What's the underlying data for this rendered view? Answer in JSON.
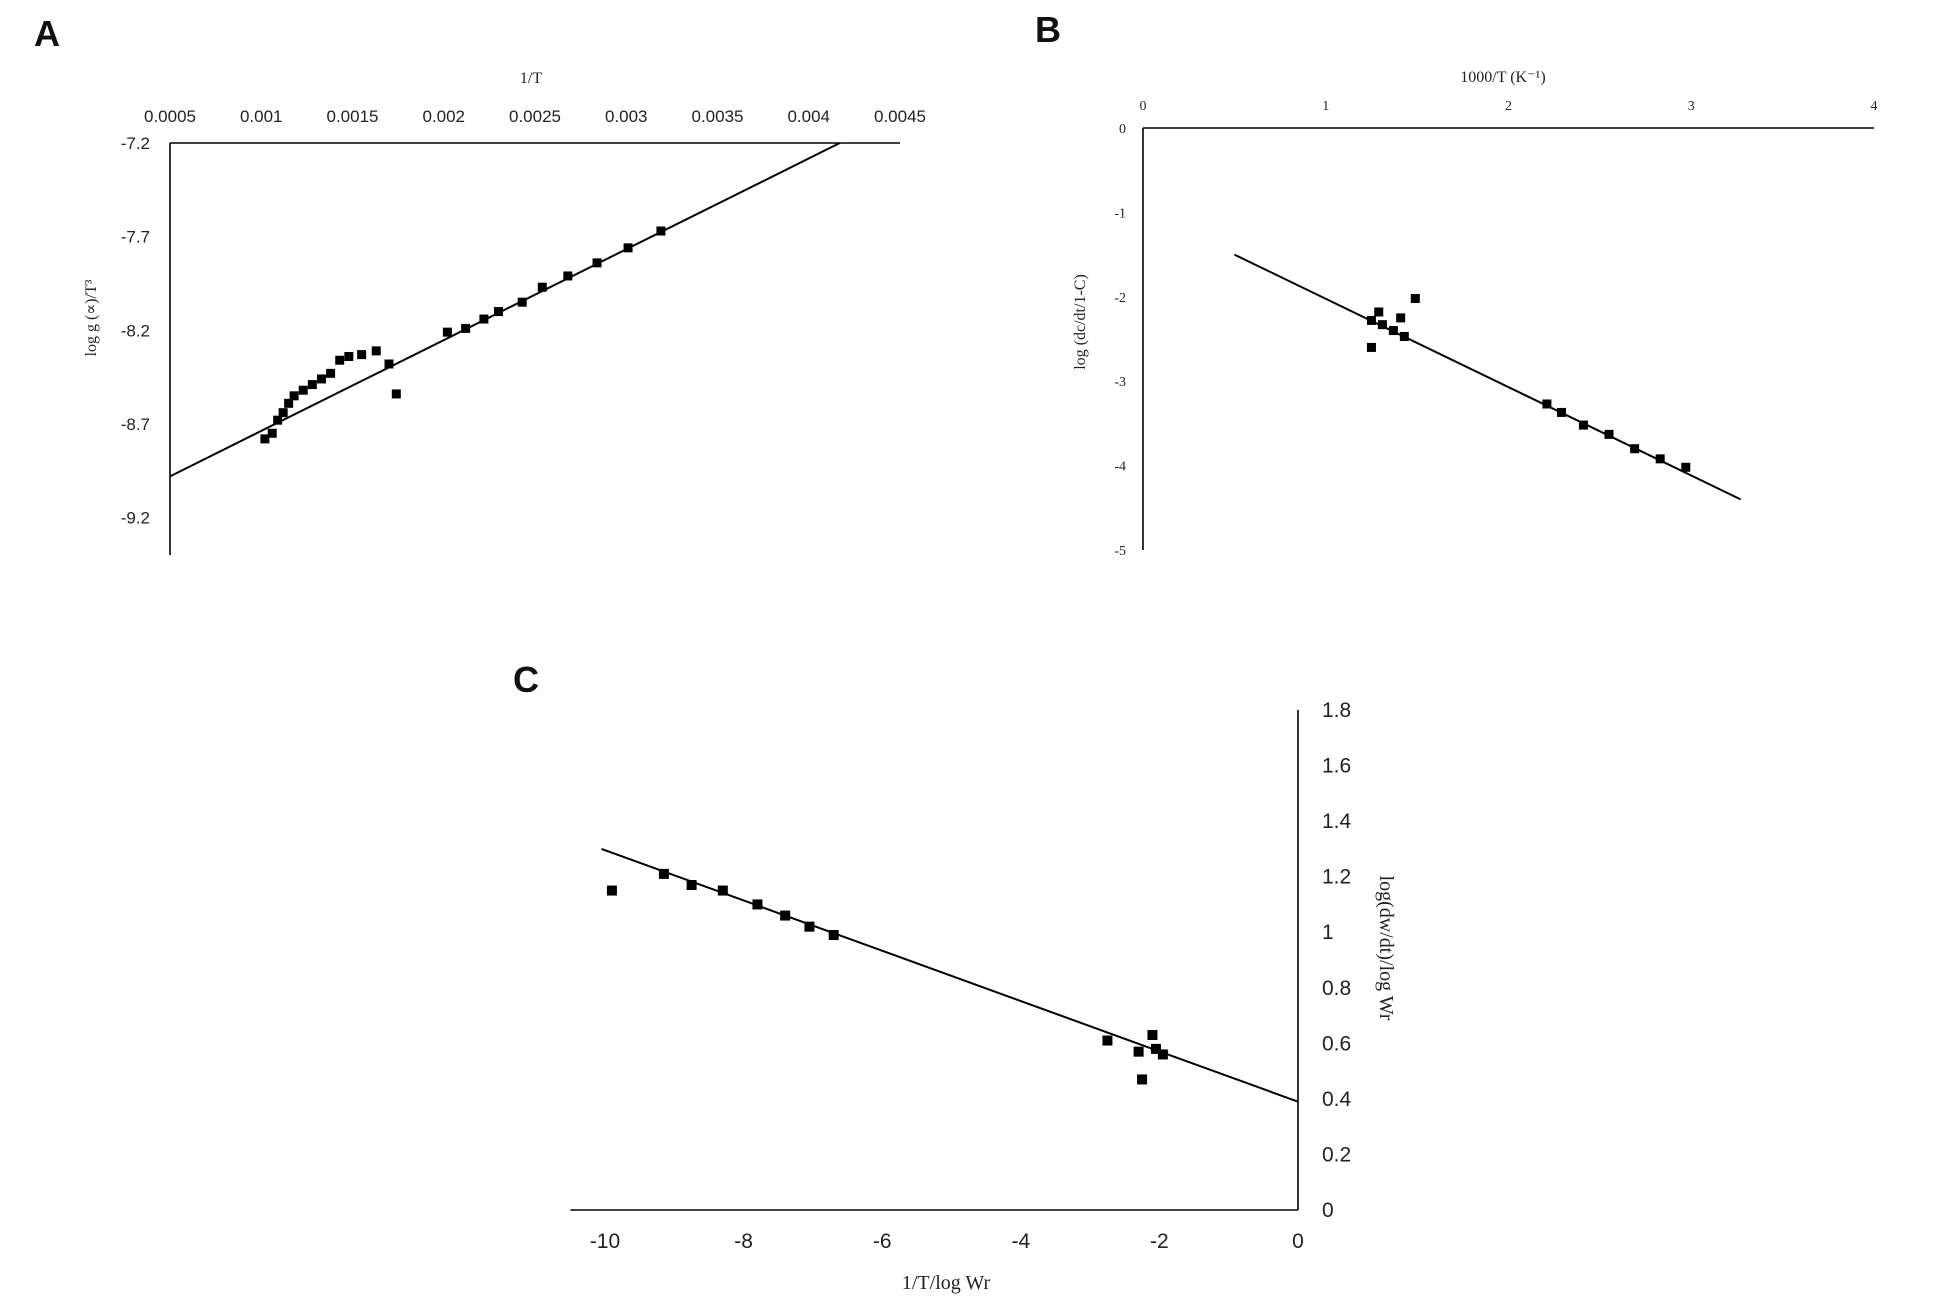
{
  "panels": [
    {
      "label": "A"
    },
    {
      "label": "B"
    },
    {
      "label": "C"
    }
  ],
  "chart_data": [
    {
      "id": "A",
      "type": "scatter",
      "xlabel": "1/T",
      "ylabel": "log g (∝)/T³",
      "xlim": [
        0.0005,
        0.0045
      ],
      "ylim": [
        -9.4,
        -7.2
      ],
      "xticks": [
        "0.0005",
        "0.001",
        "0.0015",
        "0.002",
        "0.0025",
        "0.003",
        "0.0035",
        "0.004",
        "0.0045"
      ],
      "xtick_values": [
        0.0005,
        0.001,
        0.0015,
        0.002,
        0.0025,
        0.003,
        0.0035,
        0.004,
        0.0045
      ],
      "yticks": [
        "-7.2",
        "-7.7",
        "-8.2",
        "-8.7",
        "-9.2"
      ],
      "ytick_values": [
        -7.2,
        -7.7,
        -8.2,
        -8.7,
        -9.2
      ],
      "x_axis_position": "top",
      "grid": false,
      "points": [
        [
          0.00102,
          -8.78
        ],
        [
          0.00106,
          -8.75
        ],
        [
          0.00109,
          -8.68
        ],
        [
          0.00112,
          -8.64
        ],
        [
          0.00115,
          -8.59
        ],
        [
          0.00118,
          -8.55
        ],
        [
          0.00123,
          -8.52
        ],
        [
          0.00128,
          -8.49
        ],
        [
          0.00133,
          -8.46
        ],
        [
          0.00138,
          -8.43
        ],
        [
          0.00143,
          -8.36
        ],
        [
          0.00148,
          -8.34
        ],
        [
          0.00155,
          -8.33
        ],
        [
          0.00163,
          -8.31
        ],
        [
          0.0017,
          -8.38
        ],
        [
          0.00174,
          -8.54
        ],
        [
          0.00202,
          -8.21
        ],
        [
          0.00212,
          -8.19
        ],
        [
          0.00222,
          -8.14
        ],
        [
          0.0023,
          -8.1
        ],
        [
          0.00243,
          -8.05
        ],
        [
          0.00254,
          -7.97
        ],
        [
          0.00268,
          -7.91
        ],
        [
          0.00284,
          -7.84
        ],
        [
          0.00301,
          -7.76
        ],
        [
          0.00319,
          -7.67
        ]
      ],
      "fit_line": [
        [
          0.0005,
          -8.98
        ],
        [
          0.00417,
          -7.2
        ]
      ]
    },
    {
      "id": "B",
      "type": "scatter",
      "xlabel": "1000/T (K⁻¹)",
      "ylabel": "log (dc/dt/1-C)",
      "xlim": [
        0,
        4
      ],
      "ylim": [
        -5,
        0
      ],
      "xticks": [
        "0",
        "1",
        "2",
        "3",
        "4"
      ],
      "xtick_values": [
        0,
        1,
        2,
        3,
        4
      ],
      "yticks": [
        "0",
        "-1",
        "-2",
        "-3",
        "-4",
        "-5"
      ],
      "ytick_values": [
        0,
        -1,
        -2,
        -3,
        -4,
        -5
      ],
      "x_axis_position": "top",
      "grid": false,
      "points": [
        [
          1.25,
          -2.28
        ],
        [
          1.25,
          -2.6
        ],
        [
          1.29,
          -2.18
        ],
        [
          1.31,
          -2.33
        ],
        [
          1.37,
          -2.4
        ],
        [
          1.41,
          -2.25
        ],
        [
          1.43,
          -2.47
        ],
        [
          1.49,
          -2.02
        ],
        [
          2.21,
          -3.27
        ],
        [
          2.29,
          -3.37
        ],
        [
          2.41,
          -3.52
        ],
        [
          2.55,
          -3.63
        ],
        [
          2.69,
          -3.8
        ],
        [
          2.83,
          -3.92
        ],
        [
          2.97,
          -4.02
        ]
      ],
      "fit_line": [
        [
          0.5,
          -1.5
        ],
        [
          3.27,
          -4.4
        ]
      ]
    },
    {
      "id": "C",
      "type": "scatter",
      "xlabel": "1/T/log Wr",
      "ylabel": "log(dw/dt)/log Wr",
      "xlim": [
        -10.5,
        0
      ],
      "ylim": [
        0,
        1.8
      ],
      "xticks": [
        "-10",
        "-8",
        "-6",
        "-4",
        "-2",
        "0"
      ],
      "xtick_values": [
        -10,
        -8,
        -6,
        -4,
        -2,
        0
      ],
      "yticks": [
        "0",
        "0.2",
        "0.4",
        "0.6",
        "0.8",
        "1",
        "1.2",
        "1.4",
        "1.6",
        "1.8"
      ],
      "ytick_values": [
        0,
        0.2,
        0.4,
        0.6,
        0.8,
        1,
        1.2,
        1.4,
        1.6,
        1.8
      ],
      "y_axis_position": "right",
      "grid": false,
      "points": [
        [
          -9.9,
          1.15
        ],
        [
          -9.15,
          1.21
        ],
        [
          -8.75,
          1.17
        ],
        [
          -8.3,
          1.15
        ],
        [
          -7.8,
          1.1
        ],
        [
          -7.4,
          1.06
        ],
        [
          -7.05,
          1.02
        ],
        [
          -6.7,
          0.99
        ],
        [
          -2.75,
          0.61
        ],
        [
          -2.3,
          0.57
        ],
        [
          -2.25,
          0.47
        ],
        [
          -2.1,
          0.63
        ],
        [
          -2.05,
          0.58
        ],
        [
          -1.95,
          0.56
        ]
      ],
      "fit_line": [
        [
          -10.05,
          1.3
        ],
        [
          0,
          0.39
        ]
      ]
    }
  ]
}
